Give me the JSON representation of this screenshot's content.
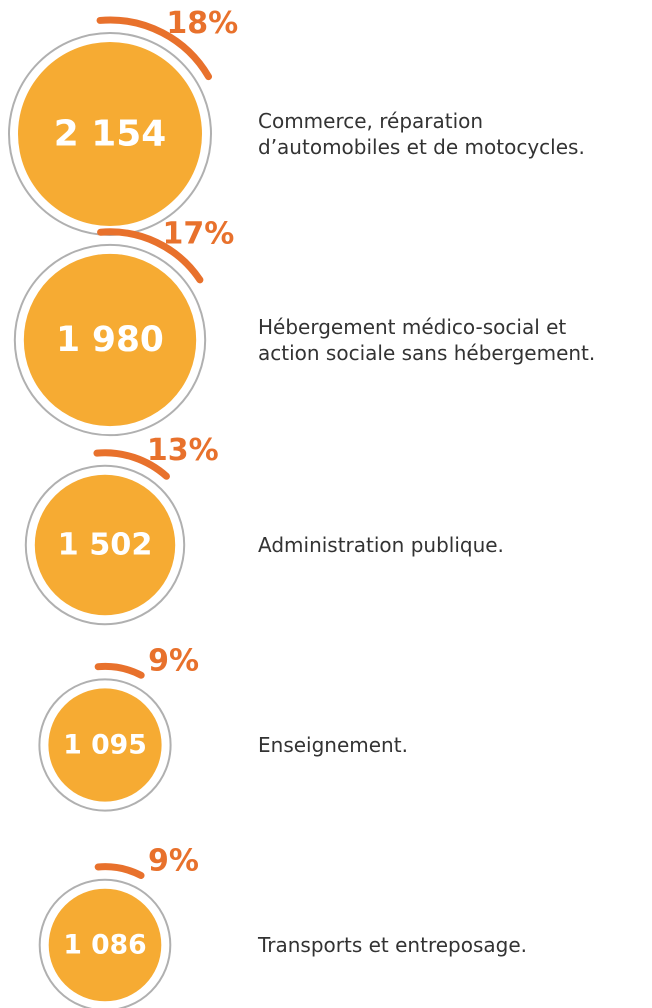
{
  "chart_data": {
    "type": "circle-list",
    "categories": [
      "Commerce, réparation\nd’automobiles et de motocycles.",
      "Hébergement médico-social et\naction sociale sans hébergement.",
      "Administration publique.",
      "Enseignement.",
      "Transports et entreposage."
    ],
    "values": [
      2154,
      1980,
      1502,
      1095,
      1086
    ],
    "value_labels": [
      "2 154",
      "1 980",
      "1 502",
      "1 095",
      "1 086"
    ],
    "shares": [
      18,
      17,
      13,
      9,
      9
    ],
    "share_labels": [
      "18%",
      "17%",
      "13%",
      "9%",
      "9%"
    ],
    "color": "#f6ab33",
    "share_color": "#e8712c"
  }
}
